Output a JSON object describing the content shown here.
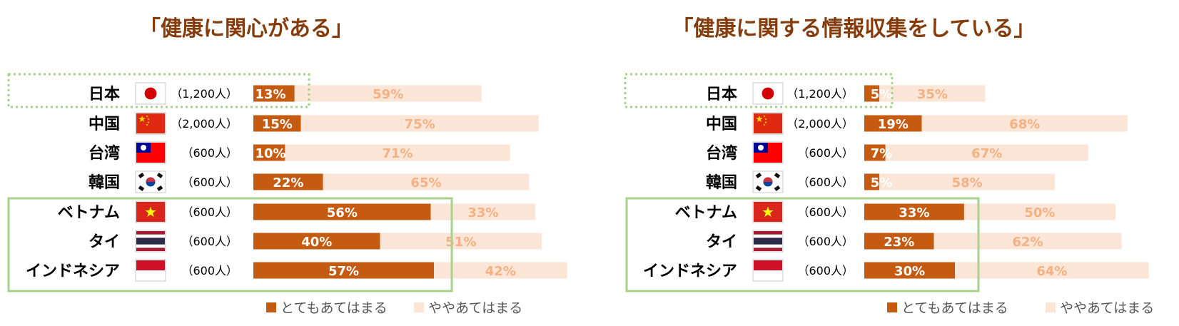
{
  "colors": {
    "strong": "#c55a11",
    "weak": "#fbe5d6",
    "weak_label": "#f4b183",
    "title": "#843c0c",
    "highlight_box": "#a9d18e"
  },
  "legend": {
    "strong_label": "とてもあてはまる",
    "weak_label": "ややあてはまる"
  },
  "chart_data": [
    {
      "type": "bar",
      "stacked": true,
      "orientation": "horizontal",
      "title": "「健康に関心がある」",
      "categories": [
        "日本",
        "中国",
        "台湾",
        "韓国",
        "ベトナム",
        "タイ",
        "インドネシア"
      ],
      "sample_sizes": [
        "（1,200人）",
        "（2,000人）",
        "（600人）",
        "（600人）",
        "（600人）",
        "（600人）",
        "（600人）"
      ],
      "flags": [
        "japan-flag-icon",
        "china-flag-icon",
        "taiwan-flag-icon",
        "korea-flag-icon",
        "vietnam-flag-icon",
        "thailand-flag-icon",
        "indonesia-flag-icon"
      ],
      "series": [
        {
          "name": "とてもあてはまる",
          "values": [
            13,
            15,
            10,
            22,
            56,
            40,
            57
          ]
        },
        {
          "name": "ややあてはまる",
          "values": [
            59,
            75,
            71,
            65,
            33,
            51,
            42
          ]
        }
      ],
      "xlim": [
        0,
        100
      ],
      "legend_position": "bottom"
    },
    {
      "type": "bar",
      "stacked": true,
      "orientation": "horizontal",
      "title": "「健康に関する情報収集をしている」",
      "categories": [
        "日本",
        "中国",
        "台湾",
        "韓国",
        "ベトナム",
        "タイ",
        "インドネシア"
      ],
      "sample_sizes": [
        "（1,200人）",
        "（2,000人）",
        "（600人）",
        "（600人）",
        "（600人）",
        "（600人）",
        "（600人）"
      ],
      "flags": [
        "japan-flag-icon",
        "china-flag-icon",
        "taiwan-flag-icon",
        "korea-flag-icon",
        "vietnam-flag-icon",
        "thailand-flag-icon",
        "indonesia-flag-icon"
      ],
      "series": [
        {
          "name": "とてもあてはまる",
          "values": [
            5,
            19,
            7,
            5,
            33,
            23,
            30
          ]
        },
        {
          "name": "ややあてはまる",
          "values": [
            35,
            68,
            67,
            58,
            50,
            62,
            64
          ]
        }
      ],
      "xlim": [
        0,
        100
      ],
      "legend_position": "bottom"
    }
  ]
}
